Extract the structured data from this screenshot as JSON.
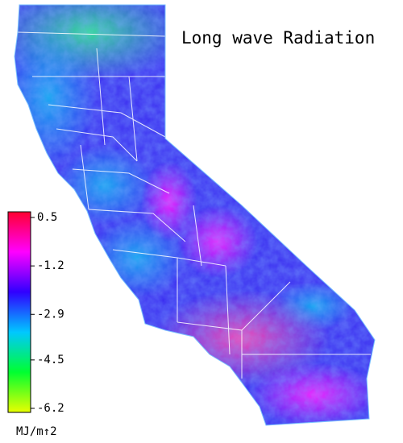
{
  "map": {
    "title": "Long wave Radiation",
    "colorbar": {
      "clim": [
        -6.2,
        0.5
      ],
      "ticks": [
        0.5,
        -1.2,
        -2.9,
        -4.5,
        -6.2
      ],
      "unit": "MJ/m↑2"
    }
  }
}
